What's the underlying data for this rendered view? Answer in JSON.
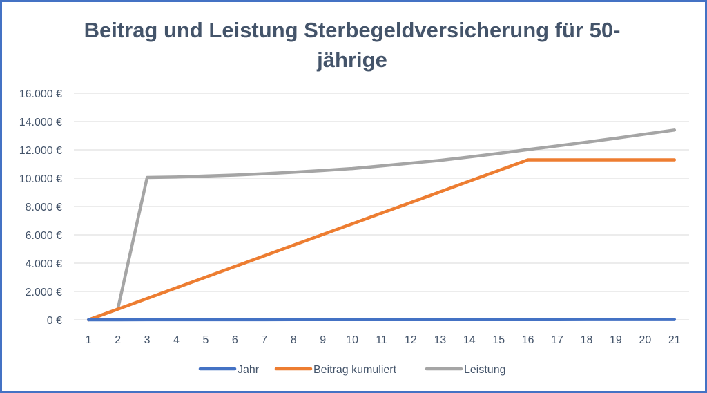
{
  "chart_data": {
    "type": "line",
    "title": "Beitrag und Leistung Sterbegeldversicherung für 50-jährige",
    "title_lines": [
      "Beitrag und Leistung Sterbegeldversicherung für 50-",
      "jährige"
    ],
    "xlabel": "",
    "ylabel": "",
    "categories": [
      "1",
      "2",
      "3",
      "4",
      "5",
      "6",
      "7",
      "8",
      "9",
      "10",
      "11",
      "12",
      "13",
      "14",
      "15",
      "16",
      "17",
      "18",
      "19",
      "20",
      "21"
    ],
    "yticks": [
      0,
      2000,
      4000,
      6000,
      8000,
      10000,
      12000,
      14000,
      16000
    ],
    "ytick_labels": [
      "0 €",
      "2.000 €",
      "4.000 €",
      "6.000 €",
      "8.000 €",
      "10.000 €",
      "12.000 €",
      "14.000 €",
      "16.000 €"
    ],
    "ylim": [
      0,
      16000
    ],
    "grid": true,
    "legend_position": "bottom",
    "series": [
      {
        "name": "Jahr",
        "color": "#4472C4",
        "values": [
          1,
          2,
          3,
          4,
          5,
          6,
          7,
          8,
          9,
          10,
          11,
          12,
          13,
          14,
          15,
          16,
          17,
          18,
          19,
          20,
          21
        ]
      },
      {
        "name": "Beitrag kumuliert",
        "color": "#ED7D31",
        "values": [
          0,
          753,
          1506,
          2259,
          3012,
          3765,
          4518,
          5271,
          6024,
          6777,
          7530,
          8283,
          9036,
          9789,
          10542,
          11295,
          11295,
          11295,
          11295,
          11295,
          11295
        ]
      },
      {
        "name": "Leistung",
        "color": "#A5A5A5",
        "values": [
          0,
          753,
          10050,
          10080,
          10150,
          10220,
          10310,
          10420,
          10540,
          10680,
          10870,
          11060,
          11260,
          11500,
          11750,
          12020,
          12280,
          12540,
          12820,
          13110,
          13400
        ]
      }
    ]
  }
}
